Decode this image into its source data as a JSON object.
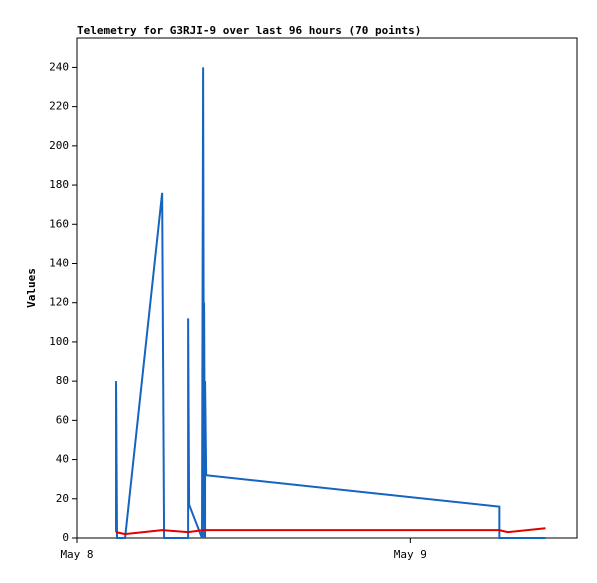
{
  "chart_data": {
    "type": "line",
    "title": "Telemetry for G3RJI-9 over last 96 hours (70 points)",
    "y_label": "Values",
    "xlim": [
      0,
      36
    ],
    "xticks": [
      {
        "value": 0,
        "label": "May 8"
      },
      {
        "value": 24,
        "label": "May 9"
      }
    ],
    "ylim": [
      0,
      255
    ],
    "yticks": [
      0,
      20,
      40,
      60,
      80,
      100,
      120,
      140,
      160,
      180,
      200,
      220,
      240
    ],
    "series": [
      {
        "color": "#1565c0",
        "x": [
          2.81,
          2.81,
          2.88,
          3.46,
          6.13,
          6.2,
          6.27,
          8.0,
          8.0,
          8.07,
          9.0,
          9.08,
          9.15,
          9.15,
          9.22,
          9.22,
          9.3,
          30.41,
          30.41,
          33.73
        ],
        "values": [
          3,
          80,
          0,
          0,
          176,
          88,
          0,
          0,
          112,
          17,
          0,
          240,
          0,
          120,
          0,
          80,
          32,
          16,
          0,
          0
        ]
      },
      {
        "color": "#e00000",
        "x": [
          2.81,
          3.46,
          6.13,
          8.0,
          9.08,
          9.3,
          30.41,
          31.0,
          33.73
        ],
        "values": [
          3,
          2,
          4,
          3,
          4,
          4,
          4,
          3,
          5
        ]
      }
    ]
  }
}
